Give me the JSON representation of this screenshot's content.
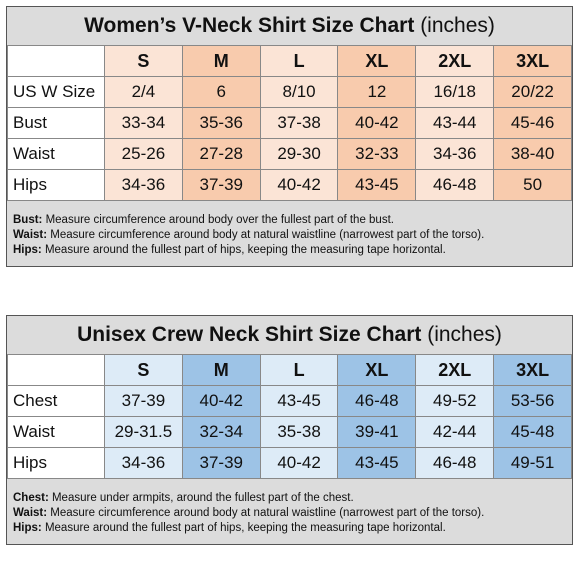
{
  "women": {
    "title_bold": "Women’s V-Neck Shirt Size Chart",
    "title_rest": " (inches)",
    "colors": {
      "light": "#fbe4d6",
      "dark": "#f8cbad",
      "label": "#ffffff"
    },
    "sizes": [
      "S",
      "M",
      "L",
      "XL",
      "2XL",
      "3XL"
    ],
    "rows": [
      {
        "label": "US W Size",
        "values": [
          "2/4",
          "6",
          "8/10",
          "12",
          "16/18",
          "20/22"
        ]
      },
      {
        "label": "Bust",
        "values": [
          "33-34",
          "35-36",
          "37-38",
          "40-42",
          "43-44",
          "45-46"
        ]
      },
      {
        "label": "Waist",
        "values": [
          "25-26",
          "27-28",
          "29-30",
          "32-33",
          "34-36",
          "38-40"
        ]
      },
      {
        "label": "Hips",
        "values": [
          "34-36",
          "37-39",
          "40-42",
          "43-45",
          "46-48",
          "50"
        ]
      }
    ],
    "notes": [
      {
        "term": "Bust:",
        "text": " Measure circumference around body over the fullest part of the bust."
      },
      {
        "term": "Waist:",
        "text": " Measure circumference around body at natural waistline (narrowest part of the torso)."
      },
      {
        "term": "Hips:",
        "text": " Measure around the fullest part of hips, keeping the measuring tape horizontal."
      }
    ]
  },
  "unisex": {
    "title_bold": "Unisex Crew Neck Shirt Size Chart",
    "title_rest": " (inches)",
    "colors": {
      "light": "#ddebf7",
      "dark": "#9dc3e6",
      "label": "#ffffff"
    },
    "sizes": [
      "S",
      "M",
      "L",
      "XL",
      "2XL",
      "3XL"
    ],
    "rows": [
      {
        "label": "Chest",
        "values": [
          "37-39",
          "40-42",
          "43-45",
          "46-48",
          "49-52",
          "53-56"
        ]
      },
      {
        "label": "Waist",
        "values": [
          "29-31.5",
          "32-34",
          "35-38",
          "39-41",
          "42-44",
          "45-48"
        ]
      },
      {
        "label": "Hips",
        "values": [
          "34-36",
          "37-39",
          "40-42",
          "43-45",
          "46-48",
          "49-51"
        ]
      }
    ],
    "notes": [
      {
        "term": "Chest:",
        "text": " Measure under armpits, around the fullest part of the chest."
      },
      {
        "term": "Waist:",
        "text": " Measure circumference around body at natural waistline (narrowest part of the torso)."
      },
      {
        "term": "Hips:",
        "text": " Measure around the fullest part of hips, keeping the measuring tape horizontal."
      }
    ]
  }
}
